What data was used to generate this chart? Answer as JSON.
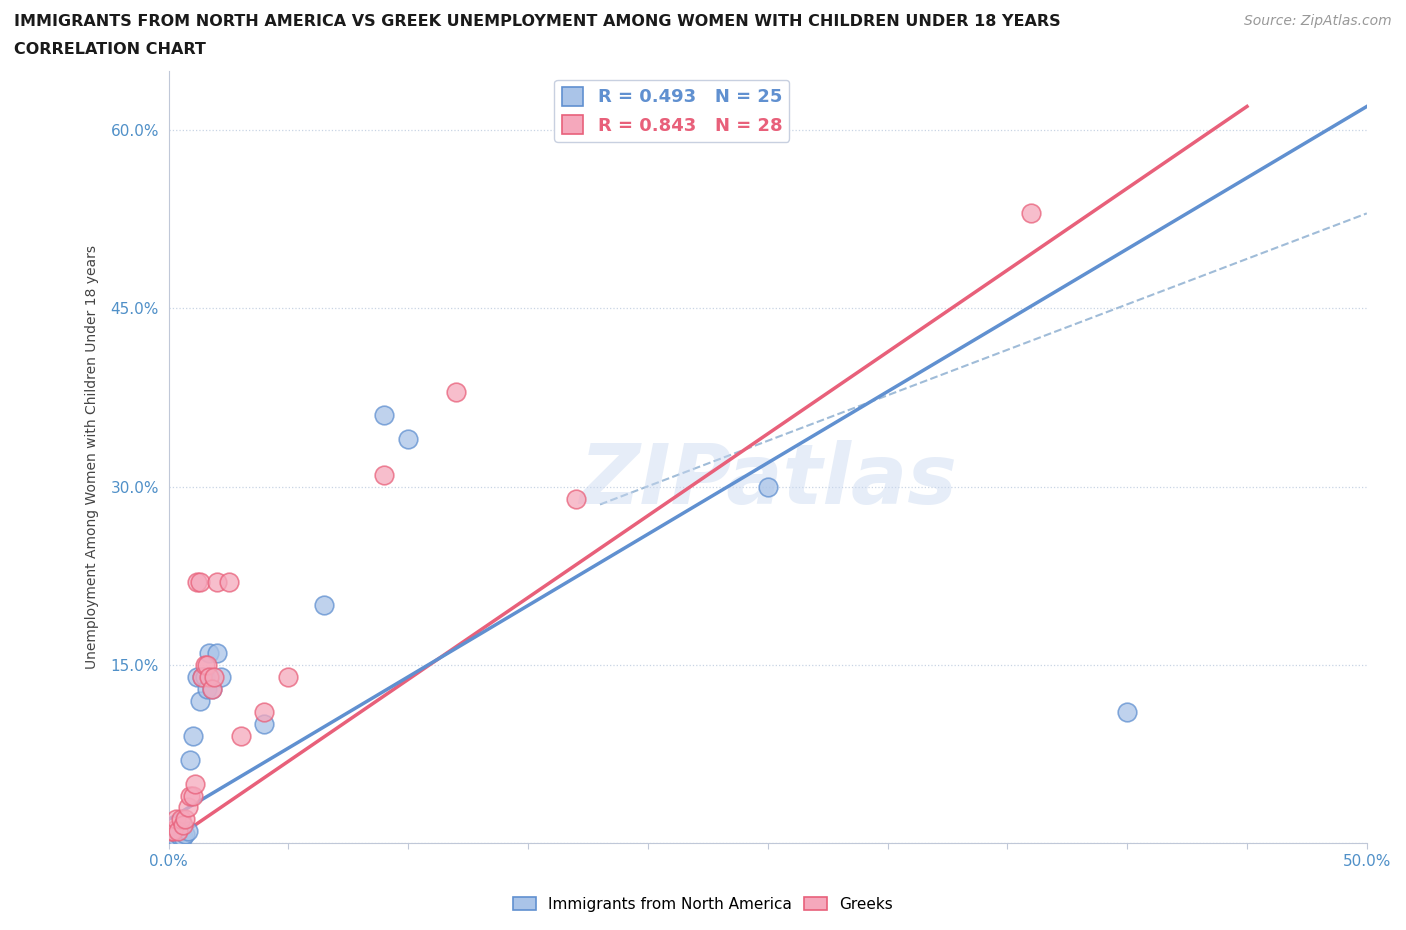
{
  "title": "IMMIGRANTS FROM NORTH AMERICA VS GREEK UNEMPLOYMENT AMONG WOMEN WITH CHILDREN UNDER 18 YEARS",
  "subtitle": "CORRELATION CHART",
  "source": "Source: ZipAtlas.com",
  "ylabel": "Unemployment Among Women with Children Under 18 years",
  "xlim": [
    0.0,
    0.5
  ],
  "ylim": [
    0.0,
    0.65
  ],
  "xticks": [
    0.0,
    0.05,
    0.1,
    0.15,
    0.2,
    0.25,
    0.3,
    0.35,
    0.4,
    0.45,
    0.5
  ],
  "xticklabels": [
    "0.0%",
    "",
    "",
    "",
    "",
    "",
    "",
    "",
    "",
    "",
    "50.0%"
  ],
  "yticks": [
    0.0,
    0.15,
    0.3,
    0.45,
    0.6
  ],
  "yticklabels": [
    "",
    "15.0%",
    "30.0%",
    "45.0%",
    "60.0%"
  ],
  "blue_label": "Immigrants from North America",
  "pink_label": "Greeks",
  "blue_R": 0.493,
  "blue_N": 25,
  "pink_R": 0.843,
  "pink_N": 28,
  "blue_color": "#aac4e8",
  "pink_color": "#f5a8bc",
  "blue_edge_color": "#6090d0",
  "pink_edge_color": "#e8607a",
  "blue_line_color": "#6090d0",
  "pink_line_color": "#e8607a",
  "dashed_line_color": "#a0bcd8",
  "watermark": "ZIPatlas",
  "watermark_color": "#c8d8f0",
  "blue_points": [
    [
      0.001,
      0.005
    ],
    [
      0.002,
      0.006
    ],
    [
      0.003,
      0.005
    ],
    [
      0.004,
      0.008
    ],
    [
      0.005,
      0.005
    ],
    [
      0.006,
      0.005
    ],
    [
      0.007,
      0.008
    ],
    [
      0.008,
      0.01
    ],
    [
      0.009,
      0.07
    ],
    [
      0.01,
      0.09
    ],
    [
      0.012,
      0.14
    ],
    [
      0.013,
      0.12
    ],
    [
      0.014,
      0.14
    ],
    [
      0.015,
      0.14
    ],
    [
      0.016,
      0.13
    ],
    [
      0.017,
      0.16
    ],
    [
      0.018,
      0.13
    ],
    [
      0.02,
      0.16
    ],
    [
      0.022,
      0.14
    ],
    [
      0.04,
      0.1
    ],
    [
      0.065,
      0.2
    ],
    [
      0.09,
      0.36
    ],
    [
      0.1,
      0.34
    ],
    [
      0.25,
      0.3
    ],
    [
      0.4,
      0.11
    ]
  ],
  "pink_points": [
    [
      0.001,
      0.01
    ],
    [
      0.002,
      0.01
    ],
    [
      0.003,
      0.02
    ],
    [
      0.004,
      0.01
    ],
    [
      0.005,
      0.02
    ],
    [
      0.006,
      0.015
    ],
    [
      0.007,
      0.02
    ],
    [
      0.008,
      0.03
    ],
    [
      0.009,
      0.04
    ],
    [
      0.01,
      0.04
    ],
    [
      0.011,
      0.05
    ],
    [
      0.012,
      0.22
    ],
    [
      0.013,
      0.22
    ],
    [
      0.014,
      0.14
    ],
    [
      0.015,
      0.15
    ],
    [
      0.016,
      0.15
    ],
    [
      0.017,
      0.14
    ],
    [
      0.018,
      0.13
    ],
    [
      0.019,
      0.14
    ],
    [
      0.02,
      0.22
    ],
    [
      0.025,
      0.22
    ],
    [
      0.03,
      0.09
    ],
    [
      0.04,
      0.11
    ],
    [
      0.05,
      0.14
    ],
    [
      0.09,
      0.31
    ],
    [
      0.12,
      0.38
    ],
    [
      0.17,
      0.29
    ],
    [
      0.36,
      0.53
    ]
  ],
  "pink_line_x": [
    0.0,
    0.45
  ],
  "pink_line_y": [
    0.0,
    0.62
  ],
  "blue_line_x": [
    0.0,
    0.5
  ],
  "blue_line_y": [
    0.02,
    0.62
  ],
  "dash_line_x": [
    0.18,
    0.5
  ],
  "dash_line_y": [
    0.285,
    0.53
  ]
}
